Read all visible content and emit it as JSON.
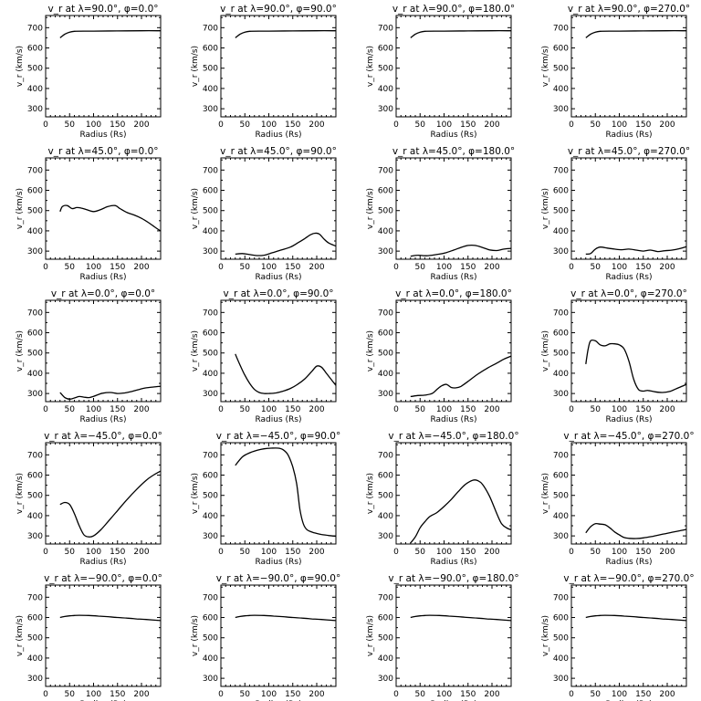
{
  "chart_data": [
    {
      "type": "line",
      "title": "v_r at λ=90.0°, φ=0.0°",
      "xlabel": "Radius (Rs)",
      "ylabel": "v_r (km/s)",
      "xlim": [
        0,
        240
      ],
      "ylim": [
        260,
        760
      ],
      "xticks": [
        0,
        50,
        100,
        150,
        200
      ],
      "yticks": [
        300,
        400,
        500,
        600,
        700
      ],
      "x": [
        30,
        40,
        50,
        60,
        80,
        100,
        150,
        200,
        240
      ],
      "y": [
        650,
        668,
        678,
        682,
        683,
        683,
        684,
        685,
        685
      ]
    },
    {
      "type": "line",
      "title": "v_r at λ=90.0°, φ=90.0°",
      "xlabel": "Radius (Rs)",
      "ylabel": "v_r (km/s)",
      "xlim": [
        0,
        240
      ],
      "ylim": [
        260,
        760
      ],
      "xticks": [
        0,
        50,
        100,
        150,
        200
      ],
      "yticks": [
        300,
        400,
        500,
        600,
        700
      ],
      "x": [
        30,
        40,
        50,
        60,
        80,
        100,
        150,
        200,
        240
      ],
      "y": [
        650,
        668,
        678,
        682,
        683,
        683,
        684,
        685,
        685
      ]
    },
    {
      "type": "line",
      "title": "v_r at λ=90.0°, φ=180.0°",
      "xlabel": "Radius (Rs)",
      "ylabel": "v_r (km/s)",
      "xlim": [
        0,
        240
      ],
      "ylim": [
        260,
        760
      ],
      "xticks": [
        0,
        50,
        100,
        150,
        200
      ],
      "yticks": [
        300,
        400,
        500,
        600,
        700
      ],
      "x": [
        30,
        40,
        50,
        60,
        80,
        100,
        150,
        200,
        240
      ],
      "y": [
        650,
        668,
        678,
        682,
        683,
        683,
        684,
        685,
        685
      ]
    },
    {
      "type": "line",
      "title": "v_r at λ=90.0°, φ=270.0°",
      "xlabel": "Radius (Rs)",
      "ylabel": "v_r (km/s)",
      "xlim": [
        0,
        240
      ],
      "ylim": [
        260,
        760
      ],
      "xticks": [
        0,
        50,
        100,
        150,
        200
      ],
      "yticks": [
        300,
        400,
        500,
        600,
        700
      ],
      "x": [
        30,
        40,
        50,
        60,
        80,
        100,
        150,
        200,
        240
      ],
      "y": [
        650,
        668,
        678,
        682,
        683,
        683,
        684,
        685,
        685
      ]
    },
    {
      "type": "line",
      "title": "v_r at λ=45.0°, φ=0.0°",
      "xlabel": "Radius (Rs)",
      "ylabel": "v_r (km/s)",
      "xlim": [
        0,
        240
      ],
      "ylim": [
        260,
        760
      ],
      "xticks": [
        0,
        50,
        100,
        150,
        200
      ],
      "yticks": [
        300,
        400,
        500,
        600,
        700
      ],
      "x": [
        30,
        35,
        45,
        55,
        65,
        75,
        85,
        100,
        115,
        130,
        145,
        155,
        170,
        185,
        200,
        215,
        230,
        240
      ],
      "y": [
        495,
        520,
        525,
        510,
        515,
        512,
        505,
        495,
        505,
        520,
        525,
        510,
        490,
        478,
        462,
        440,
        415,
        400
      ]
    },
    {
      "type": "line",
      "title": "v_r at λ=45.0°, φ=90.0°",
      "xlabel": "Radius (Rs)",
      "ylabel": "v_r (km/s)",
      "xlim": [
        0,
        240
      ],
      "ylim": [
        260,
        760
      ],
      "xticks": [
        0,
        50,
        100,
        150,
        200
      ],
      "yticks": [
        300,
        400,
        500,
        600,
        700
      ],
      "x": [
        30,
        45,
        60,
        75,
        90,
        105,
        125,
        145,
        160,
        175,
        185,
        195,
        205,
        215,
        225,
        240
      ],
      "y": [
        285,
        288,
        283,
        278,
        280,
        290,
        305,
        320,
        340,
        362,
        378,
        388,
        385,
        360,
        340,
        325
      ]
    },
    {
      "type": "line",
      "title": "v_r at λ=45.0°, φ=180.0°",
      "xlabel": "Radius (Rs)",
      "ylabel": "v_r (km/s)",
      "xlim": [
        0,
        240
      ],
      "ylim": [
        260,
        760
      ],
      "xticks": [
        0,
        50,
        100,
        150,
        200
      ],
      "yticks": [
        300,
        400,
        500,
        600,
        700
      ],
      "x": [
        30,
        45,
        60,
        75,
        90,
        105,
        120,
        135,
        150,
        165,
        180,
        195,
        210,
        225,
        240
      ],
      "y": [
        275,
        280,
        277,
        280,
        285,
        293,
        305,
        318,
        328,
        328,
        318,
        306,
        303,
        310,
        313
      ]
    },
    {
      "type": "line",
      "title": "v_r at λ=45.0°, φ=270.0°",
      "xlabel": "Radius (Rs)",
      "ylabel": "v_r (km/s)",
      "xlim": [
        0,
        240
      ],
      "ylim": [
        260,
        760
      ],
      "xticks": [
        0,
        50,
        100,
        150,
        200
      ],
      "yticks": [
        300,
        400,
        500,
        600,
        700
      ],
      "x": [
        30,
        40,
        50,
        60,
        75,
        90,
        105,
        120,
        135,
        150,
        165,
        180,
        195,
        210,
        225,
        240
      ],
      "y": [
        285,
        288,
        310,
        320,
        315,
        310,
        307,
        310,
        305,
        300,
        305,
        298,
        302,
        305,
        312,
        322
      ]
    },
    {
      "type": "line",
      "title": "v_r at λ=0.0°, φ=0.0°",
      "xlabel": "Radius (Rs)",
      "ylabel": "v_r (km/s)",
      "xlim": [
        0,
        240
      ],
      "ylim": [
        260,
        760
      ],
      "xticks": [
        0,
        50,
        100,
        150,
        200
      ],
      "yticks": [
        300,
        400,
        500,
        600,
        700
      ],
      "x": [
        30,
        40,
        50,
        60,
        70,
        80,
        90,
        100,
        110,
        120,
        135,
        150,
        165,
        180,
        195,
        210,
        225,
        240
      ],
      "y": [
        305,
        280,
        272,
        278,
        285,
        282,
        280,
        286,
        295,
        302,
        305,
        300,
        303,
        310,
        320,
        328,
        332,
        336
      ]
    },
    {
      "type": "line",
      "title": "v_r at λ=0.0°, φ=90.0°",
      "xlabel": "Radius (Rs)",
      "ylabel": "v_r (km/s)",
      "xlim": [
        0,
        240
      ],
      "ylim": [
        260,
        760
      ],
      "xticks": [
        0,
        50,
        100,
        150,
        200
      ],
      "yticks": [
        300,
        400,
        500,
        600,
        700
      ],
      "x": [
        30,
        40,
        50,
        60,
        70,
        80,
        90,
        100,
        115,
        130,
        145,
        160,
        175,
        190,
        200,
        210,
        220,
        230,
        240
      ],
      "y": [
        495,
        440,
        390,
        350,
        320,
        305,
        300,
        300,
        303,
        312,
        325,
        345,
        372,
        410,
        435,
        430,
        400,
        370,
        340
      ]
    },
    {
      "type": "line",
      "title": "v_r at λ=0.0°, φ=180.0°",
      "xlabel": "Radius (Rs)",
      "ylabel": "v_r (km/s)",
      "xlim": [
        0,
        240
      ],
      "ylim": [
        260,
        760
      ],
      "xticks": [
        0,
        50,
        100,
        150,
        200
      ],
      "yticks": [
        300,
        400,
        500,
        600,
        700
      ],
      "x": [
        30,
        45,
        60,
        75,
        85,
        95,
        105,
        115,
        125,
        135,
        150,
        170,
        190,
        210,
        225,
        240
      ],
      "y": [
        285,
        290,
        292,
        300,
        320,
        338,
        345,
        330,
        328,
        335,
        360,
        395,
        425,
        450,
        470,
        485
      ]
    },
    {
      "type": "line",
      "title": "v_r at λ=0.0°, φ=270.0°",
      "xlabel": "Radius (Rs)",
      "ylabel": "v_r (km/s)",
      "xlim": [
        0,
        240
      ],
      "ylim": [
        260,
        760
      ],
      "xticks": [
        0,
        50,
        100,
        150,
        200
      ],
      "yticks": [
        300,
        400,
        500,
        600,
        700
      ],
      "x": [
        30,
        35,
        40,
        50,
        60,
        70,
        80,
        90,
        100,
        110,
        120,
        130,
        140,
        150,
        160,
        175,
        190,
        205,
        220,
        240
      ],
      "y": [
        445,
        520,
        560,
        560,
        540,
        535,
        545,
        545,
        540,
        520,
        460,
        370,
        320,
        312,
        315,
        308,
        305,
        310,
        325,
        345
      ]
    },
    {
      "type": "line",
      "title": "v_r at λ=−45.0°, φ=0.0°",
      "xlabel": "Radius (Rs)",
      "ylabel": "v_r (km/s)",
      "xlim": [
        0,
        240
      ],
      "ylim": [
        260,
        760
      ],
      "xticks": [
        0,
        50,
        100,
        150,
        200
      ],
      "yticks": [
        300,
        400,
        500,
        600,
        700
      ],
      "x": [
        30,
        40,
        50,
        60,
        70,
        80,
        90,
        100,
        115,
        130,
        150,
        170,
        190,
        210,
        225,
        240
      ],
      "y": [
        455,
        465,
        455,
        410,
        350,
        305,
        295,
        300,
        330,
        370,
        425,
        480,
        530,
        575,
        600,
        620
      ]
    },
    {
      "type": "line",
      "title": "v_r at λ=−45.0°, φ=90.0°",
      "xlabel": "Radius (Rs)",
      "ylabel": "v_r (km/s)",
      "xlim": [
        0,
        240
      ],
      "ylim": [
        260,
        760
      ],
      "xticks": [
        0,
        50,
        100,
        150,
        200
      ],
      "yticks": [
        300,
        400,
        500,
        600,
        700
      ],
      "x": [
        30,
        45,
        60,
        75,
        90,
        105,
        120,
        130,
        140,
        150,
        158,
        165,
        172,
        180,
        195,
        210,
        225,
        240
      ],
      "y": [
        648,
        690,
        710,
        722,
        730,
        733,
        733,
        725,
        700,
        640,
        560,
        430,
        360,
        330,
        315,
        307,
        302,
        298
      ]
    },
    {
      "type": "line",
      "title": "v_r at λ=−45.0°, φ=180.0°",
      "xlabel": "Radius (Rs)",
      "ylabel": "v_r (km/s)",
      "xlim": [
        0,
        240
      ],
      "ylim": [
        260,
        760
      ],
      "xticks": [
        0,
        50,
        100,
        150,
        200
      ],
      "yticks": [
        300,
        400,
        500,
        600,
        700
      ],
      "x": [
        30,
        40,
        50,
        60,
        70,
        85,
        100,
        115,
        130,
        145,
        160,
        170,
        180,
        195,
        210,
        220,
        230,
        240
      ],
      "y": [
        265,
        295,
        340,
        370,
        395,
        415,
        445,
        480,
        520,
        555,
        575,
        573,
        555,
        495,
        410,
        360,
        340,
        330
      ]
    },
    {
      "type": "line",
      "title": "v_r at λ=−45.0°, φ=270.0°",
      "xlabel": "Radius (Rs)",
      "ylabel": "v_r (km/s)",
      "xlim": [
        0,
        240
      ],
      "ylim": [
        260,
        760
      ],
      "xticks": [
        0,
        50,
        100,
        150,
        200
      ],
      "yticks": [
        300,
        400,
        500,
        600,
        700
      ],
      "x": [
        30,
        40,
        50,
        60,
        70,
        80,
        90,
        100,
        110,
        120,
        135,
        150,
        170,
        190,
        210,
        225,
        240
      ],
      "y": [
        315,
        345,
        360,
        358,
        355,
        340,
        320,
        305,
        292,
        288,
        287,
        290,
        298,
        308,
        318,
        325,
        332
      ]
    },
    {
      "type": "line",
      "title": "v_r at λ=−90.0°, φ=0.0°",
      "xlabel": "Radius (Rs)",
      "ylabel": "v_r (km/s)",
      "xlim": [
        0,
        240
      ],
      "ylim": [
        260,
        760
      ],
      "xticks": [
        0,
        50,
        100,
        150,
        200
      ],
      "yticks": [
        300,
        400,
        500,
        600,
        700
      ],
      "x": [
        30,
        40,
        50,
        60,
        70,
        90,
        110,
        130,
        150,
        170,
        190,
        210,
        240
      ],
      "y": [
        600,
        605,
        608,
        610,
        611,
        610,
        607,
        604,
        600,
        597,
        593,
        590,
        585
      ]
    },
    {
      "type": "line",
      "title": "v_r at λ=−90.0°, φ=90.0°",
      "xlabel": "Radius (Rs)",
      "ylabel": "v_r (km/s)",
      "xlim": [
        0,
        240
      ],
      "ylim": [
        260,
        760
      ],
      "xticks": [
        0,
        50,
        100,
        150,
        200
      ],
      "yticks": [
        300,
        400,
        500,
        600,
        700
      ],
      "x": [
        30,
        40,
        50,
        60,
        70,
        90,
        110,
        130,
        150,
        170,
        190,
        210,
        240
      ],
      "y": [
        600,
        605,
        608,
        610,
        611,
        610,
        607,
        604,
        600,
        597,
        593,
        590,
        585
      ]
    },
    {
      "type": "line",
      "title": "v_r at λ=−90.0°, φ=180.0°",
      "xlabel": "Radius (Rs)",
      "ylabel": "v_r (km/s)",
      "xlim": [
        0,
        240
      ],
      "ylim": [
        260,
        760
      ],
      "xticks": [
        0,
        50,
        100,
        150,
        200
      ],
      "yticks": [
        300,
        400,
        500,
        600,
        700
      ],
      "x": [
        30,
        40,
        50,
        60,
        70,
        90,
        110,
        130,
        150,
        170,
        190,
        210,
        240
      ],
      "y": [
        600,
        605,
        608,
        610,
        611,
        610,
        607,
        604,
        600,
        597,
        593,
        590,
        585
      ]
    },
    {
      "type": "line",
      "title": "v_r at λ=−90.0°, φ=270.0°",
      "xlabel": "Radius (Rs)",
      "ylabel": "v_r (km/s)",
      "xlim": [
        0,
        240
      ],
      "ylim": [
        260,
        760
      ],
      "xticks": [
        0,
        50,
        100,
        150,
        200
      ],
      "yticks": [
        300,
        400,
        500,
        600,
        700
      ],
      "x": [
        30,
        40,
        50,
        60,
        70,
        90,
        110,
        130,
        150,
        170,
        190,
        210,
        240
      ],
      "y": [
        600,
        605,
        608,
        610,
        611,
        610,
        607,
        604,
        600,
        597,
        593,
        590,
        585
      ]
    }
  ]
}
